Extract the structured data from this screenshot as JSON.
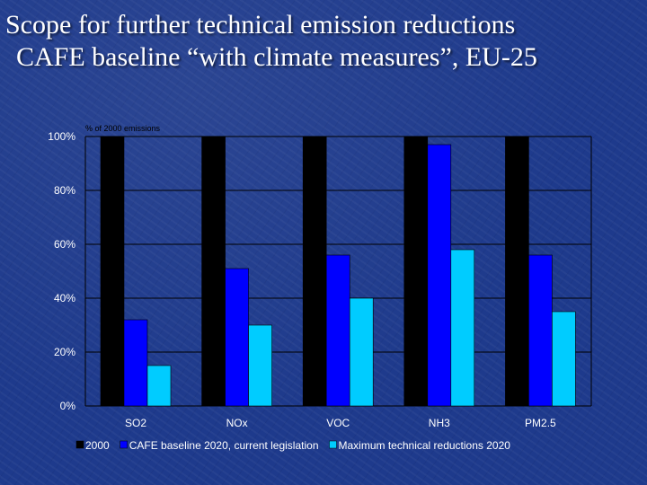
{
  "slide": {
    "title_line1": "Scope for further technical emission reductions",
    "title_line2": "CAFE baseline “with climate measures”, EU-25"
  },
  "chart_data": {
    "type": "bar",
    "unit_note": "% of 2000 emissions",
    "categories": [
      "SO2",
      "NOx",
      "VOC",
      "NH3",
      "PM2.5"
    ],
    "series": [
      {
        "name": "2000",
        "color": "#000000",
        "values": [
          100,
          100,
          100,
          100,
          100
        ]
      },
      {
        "name": "CAFE baseline 2020, current legislation",
        "color": "#0000ff",
        "values": [
          32,
          51,
          56,
          97,
          56
        ]
      },
      {
        "name": "Maximum technical reductions 2020",
        "color": "#00ccff",
        "values": [
          15,
          30,
          40,
          58,
          35
        ]
      }
    ],
    "ylim": [
      0,
      100
    ],
    "yticks": [
      "0%",
      "20%",
      "40%",
      "60%",
      "80%",
      "100%"
    ],
    "grid": true,
    "legend_position": "bottom",
    "colors": {
      "plot_background": "#1e3a8c",
      "gridline": "#000000"
    }
  }
}
